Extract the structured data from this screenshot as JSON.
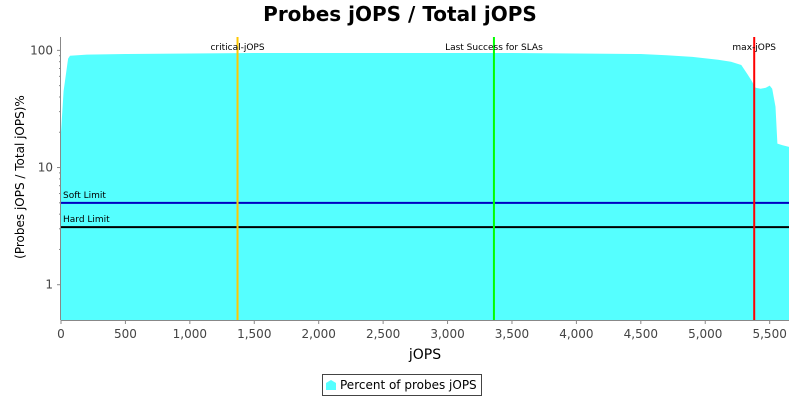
{
  "chart_data": {
    "type": "area",
    "title": "Probes jOPS / Total jOPS",
    "xlabel": "jOPS",
    "ylabel": "(Probes jOPS / Total jOPS)%",
    "xlim": [
      0,
      5650
    ],
    "ylim": [
      0.5,
      130
    ],
    "y_scale": "log",
    "grid": false,
    "legend_placement": "bottom",
    "x_ticks": [
      0,
      500,
      1000,
      1500,
      2000,
      2500,
      3000,
      3500,
      4000,
      4500,
      5000,
      5500
    ],
    "x_tick_labels": [
      "0",
      "500",
      "1,000",
      "1,500",
      "2,000",
      "2,500",
      "3,000",
      "3,500",
      "4,000",
      "4,500",
      "5,000",
      "5,500"
    ],
    "y_ticks": [
      1,
      10,
      100
    ],
    "y_tick_labels": [
      "1",
      "10",
      "100"
    ],
    "series": [
      {
        "name": "Percent of probes jOPS",
        "color": "#55ffff",
        "x": [
          0,
          20,
          55,
          70,
          200,
          500,
          1000,
          1500,
          2000,
          2500,
          3000,
          3500,
          4000,
          4500,
          4700,
          4900,
          5100,
          5200,
          5280,
          5330,
          5360,
          5390,
          5430,
          5470,
          5500,
          5520,
          5545,
          5560,
          5600,
          5650
        ],
        "values": [
          20,
          45,
          85,
          90,
          92,
          93,
          94,
          95,
          95,
          95,
          95,
          95,
          94,
          93,
          91,
          88,
          83,
          80,
          75,
          62,
          55,
          48,
          47,
          48,
          50,
          47,
          33,
          16,
          15.5,
          15
        ]
      }
    ],
    "markers": [
      {
        "label": "critical-jOPS",
        "x": 1370,
        "color": "#ffc800"
      },
      {
        "label": "Last Success for SLAs",
        "x": 3360,
        "color": "#00ff00"
      },
      {
        "label": "max-jOPS",
        "x": 5380,
        "color": "#ff0000"
      }
    ],
    "thresholds": [
      {
        "label": "Soft Limit",
        "y": 5,
        "color": "#0000c0"
      },
      {
        "label": "Hard Limit",
        "y": 3.1,
        "color": "#000000"
      }
    ]
  }
}
